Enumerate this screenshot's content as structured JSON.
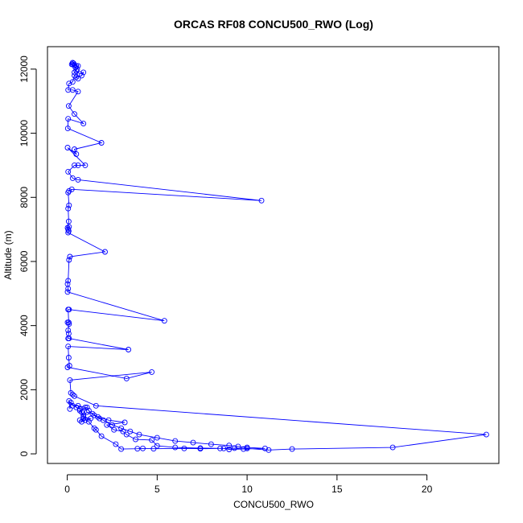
{
  "chart_data": {
    "type": "line",
    "title": "ORCAS RF08 CONCU500_RWO (Log)",
    "xlabel": "CONCU500_RWO",
    "ylabel": "Altitude (m)",
    "xlim": [
      -1.1,
      24.0
    ],
    "ylim": [
      -300,
      12700
    ],
    "xticks": [
      0,
      5,
      10,
      15,
      20
    ],
    "yticks": [
      0,
      2000,
      4000,
      6000,
      8000,
      10000,
      12000
    ],
    "grid": false,
    "colors": {
      "series": "#0000ff",
      "axis": "#000000"
    },
    "marker": "open-circle",
    "series": [
      {
        "points": [
          [
            0.3,
            12150
          ],
          [
            0.35,
            12180
          ],
          [
            0.4,
            12120
          ],
          [
            0.5,
            12100
          ],
          [
            0.3,
            12200
          ],
          [
            0.25,
            12150
          ],
          [
            0.45,
            12060
          ],
          [
            0.6,
            12100
          ],
          [
            0.55,
            12000
          ],
          [
            0.4,
            11900
          ],
          [
            0.5,
            11950
          ],
          [
            0.7,
            11850
          ],
          [
            0.9,
            11900
          ],
          [
            0.8,
            11800
          ],
          [
            0.5,
            11750
          ],
          [
            0.6,
            11700
          ],
          [
            0.4,
            11800
          ],
          [
            0.3,
            11600
          ],
          [
            0.1,
            11550
          ],
          [
            0.05,
            11350
          ],
          [
            0.3,
            11350
          ],
          [
            0.6,
            11300
          ],
          [
            0.08,
            10850
          ],
          [
            0.4,
            10600
          ],
          [
            0.9,
            10300
          ],
          [
            0.05,
            10450
          ],
          [
            0.03,
            10150
          ],
          [
            1.9,
            9700
          ],
          [
            0.4,
            9500
          ],
          [
            0.5,
            9350
          ],
          [
            0.02,
            9550
          ],
          [
            1.0,
            9000
          ],
          [
            0.6,
            9000
          ],
          [
            0.4,
            9000
          ],
          [
            0.05,
            8800
          ],
          [
            0.3,
            8600
          ],
          [
            0.6,
            8550
          ],
          [
            10.8,
            7900
          ],
          [
            0.25,
            8250
          ],
          [
            0.1,
            8200
          ],
          [
            0.05,
            8150
          ],
          [
            0.1,
            7750
          ],
          [
            0.05,
            7650
          ],
          [
            0.08,
            7250
          ],
          [
            0.02,
            7050
          ],
          [
            0.1,
            7080
          ],
          [
            0.05,
            7000
          ],
          [
            0.08,
            6950
          ],
          [
            0.05,
            6900
          ],
          [
            2.1,
            6300
          ],
          [
            0.15,
            6150
          ],
          [
            0.1,
            6050
          ],
          [
            0.05,
            5400
          ],
          [
            0.02,
            5300
          ],
          [
            0.05,
            5150
          ],
          [
            0.02,
            5050
          ],
          [
            5.4,
            4150
          ],
          [
            0.1,
            4500
          ],
          [
            0.05,
            4500
          ],
          [
            0.08,
            4100
          ],
          [
            0.02,
            4100
          ],
          [
            0.1,
            4050
          ],
          [
            0.05,
            3850
          ],
          [
            0.08,
            3750
          ],
          [
            0.05,
            3600
          ],
          [
            0.1,
            3600
          ],
          [
            3.4,
            3250
          ],
          [
            0.05,
            3350
          ],
          [
            0.08,
            3000
          ],
          [
            0.12,
            2750
          ],
          [
            0.02,
            2700
          ],
          [
            3.3,
            2350
          ],
          [
            4.7,
            2550
          ],
          [
            0.15,
            2300
          ],
          [
            0.2,
            1900
          ],
          [
            0.3,
            1850
          ],
          [
            0.4,
            1800
          ],
          [
            1.6,
            1500
          ],
          [
            23.3,
            600
          ],
          [
            18.1,
            200
          ],
          [
            12.5,
            150
          ],
          [
            11.2,
            120
          ],
          [
            10.0,
            170
          ],
          [
            9.3,
            180
          ],
          [
            8.5,
            170
          ],
          [
            7.4,
            160
          ],
          [
            6.5,
            170
          ],
          [
            4.8,
            160
          ],
          [
            4.2,
            170
          ],
          [
            3.9,
            160
          ],
          [
            3.0,
            150
          ],
          [
            2.7,
            300
          ],
          [
            1.9,
            550
          ],
          [
            1.6,
            750
          ],
          [
            1.5,
            800
          ],
          [
            1.2,
            1000
          ],
          [
            0.9,
            1100
          ],
          [
            0.7,
            1050
          ],
          [
            0.8,
            1000
          ],
          [
            1.0,
            1050
          ],
          [
            1.3,
            1100
          ],
          [
            0.9,
            1150
          ],
          [
            0.8,
            1300
          ],
          [
            0.7,
            1400
          ],
          [
            0.5,
            1450
          ],
          [
            0.2,
            1600
          ],
          [
            0.15,
            1400
          ],
          [
            0.1,
            1650
          ],
          [
            0.3,
            1500
          ],
          [
            0.6,
            1500
          ],
          [
            1.0,
            1450
          ],
          [
            1.2,
            1350
          ],
          [
            1.5,
            1200
          ],
          [
            1.8,
            1100
          ],
          [
            2.0,
            1050
          ],
          [
            2.5,
            900
          ],
          [
            3.0,
            800
          ],
          [
            3.5,
            700
          ],
          [
            4.0,
            600
          ],
          [
            5.0,
            500
          ],
          [
            6.0,
            400
          ],
          [
            7.0,
            350
          ],
          [
            8.0,
            300
          ],
          [
            9.0,
            260
          ],
          [
            9.5,
            230
          ],
          [
            10.0,
            200
          ],
          [
            11.0,
            170
          ],
          [
            9.8,
            150
          ],
          [
            9.0,
            140
          ],
          [
            8.7,
            170
          ],
          [
            7.4,
            180
          ],
          [
            6.0,
            200
          ],
          [
            5.0,
            250
          ],
          [
            4.7,
            430
          ],
          [
            3.8,
            450
          ],
          [
            3.3,
            600
          ],
          [
            3.1,
            700
          ],
          [
            2.6,
            750
          ],
          [
            2.2,
            900
          ],
          [
            3.2,
            980
          ],
          [
            2.3,
            1050
          ],
          [
            1.7,
            1150
          ],
          [
            1.4,
            1250
          ],
          [
            1.1,
            1300
          ],
          [
            0.9,
            1200
          ],
          [
            0.7,
            1350
          ],
          [
            1.1,
            1450
          ]
        ]
      }
    ]
  }
}
